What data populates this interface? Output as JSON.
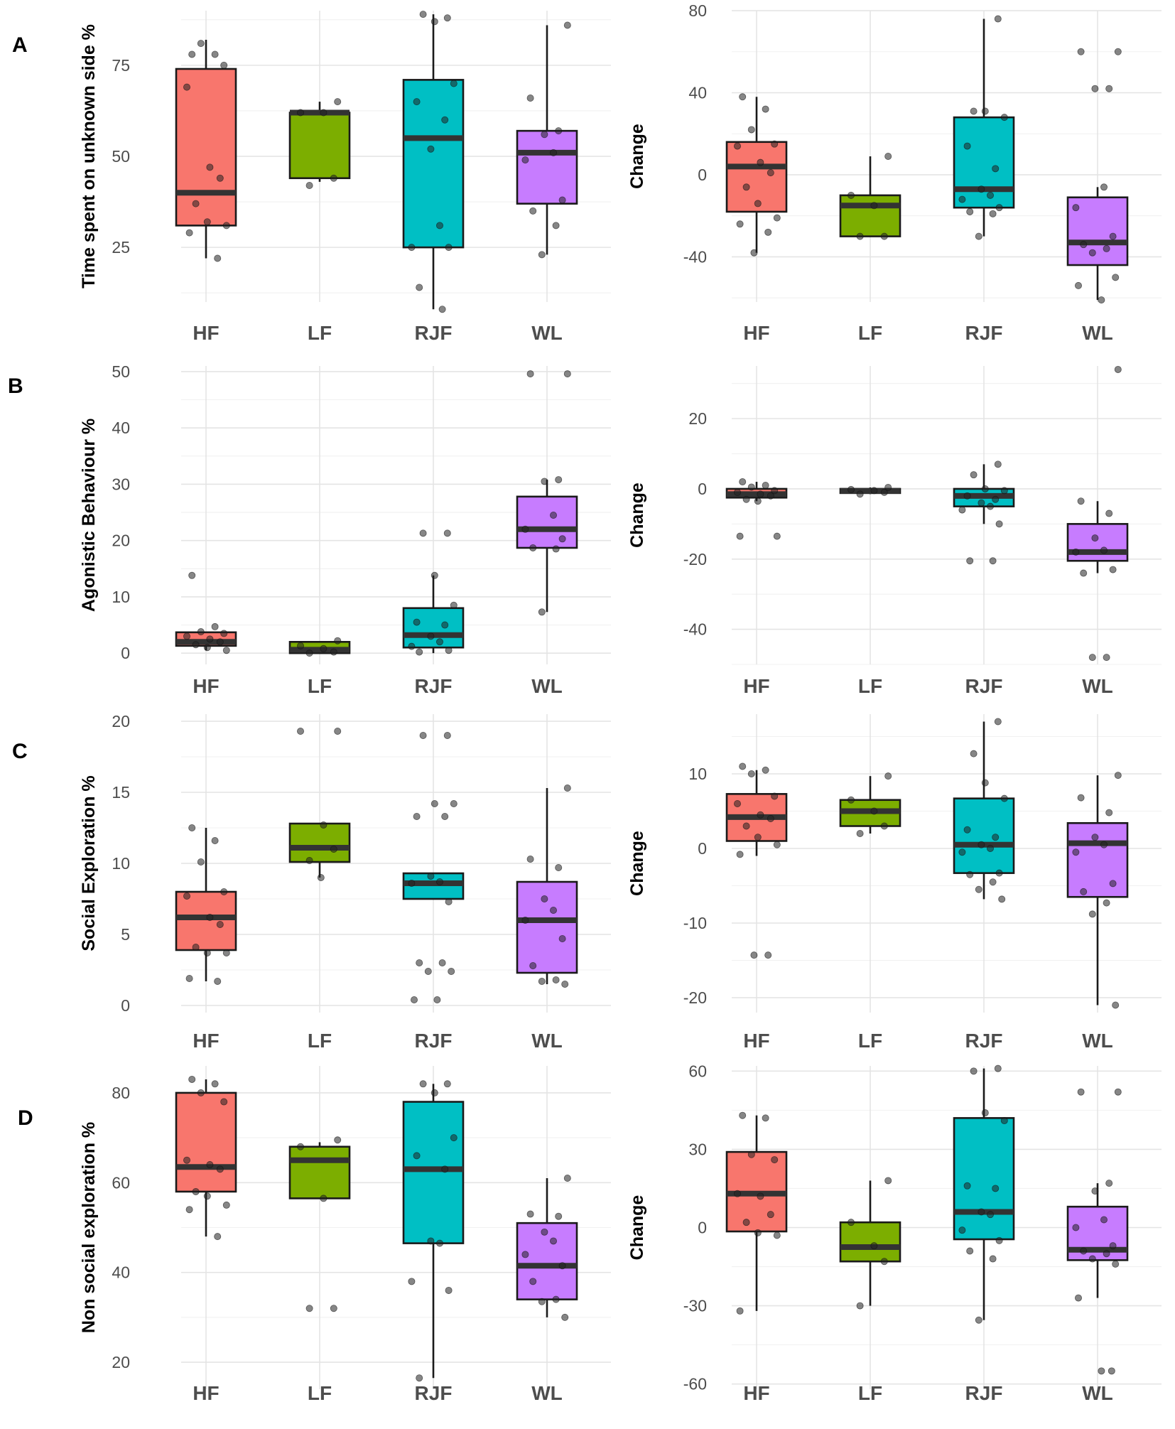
{
  "colors": {
    "HF": "#F8766D",
    "LF": "#7CAE00",
    "RJF": "#00BFC4",
    "WL": "#C77CFF"
  },
  "chart_data": [
    {
      "type": "box",
      "panel": "A",
      "side": "left",
      "title": "",
      "xlabel": "",
      "ylabel": "Time spent on unknown side %",
      "ylim": [
        10,
        90
      ],
      "yticks": [
        25,
        50,
        75
      ],
      "categories": [
        "HF",
        "LF",
        "RJF",
        "WL"
      ],
      "boxes": [
        {
          "category": "HF",
          "min": 22,
          "q1": 31,
          "median": 40,
          "q3": 74,
          "max": 82,
          "points": [
            78,
            78,
            81,
            75,
            69,
            47,
            44,
            37,
            32,
            31,
            29,
            22
          ]
        },
        {
          "category": "LF",
          "min": 43,
          "q1": 44,
          "median": 62,
          "q3": 62,
          "max": 65,
          "points": [
            65,
            62,
            62,
            44,
            42
          ]
        },
        {
          "category": "RJF",
          "min": 8,
          "q1": 25,
          "median": 55,
          "q3": 71,
          "max": 89,
          "points": [
            88,
            89,
            87,
            70,
            65,
            60,
            52,
            31,
            25,
            25,
            14,
            8
          ]
        },
        {
          "category": "WL",
          "min": 23,
          "q1": 37,
          "median": 51,
          "q3": 57,
          "max": 86,
          "points": [
            86,
            66,
            57,
            56,
            51,
            49,
            38,
            35,
            31,
            23
          ]
        }
      ]
    },
    {
      "type": "box",
      "panel": "A",
      "side": "right",
      "title": "",
      "xlabel": "",
      "ylabel": "Change",
      "ylim": [
        -62,
        80
      ],
      "yticks": [
        -40,
        0,
        40,
        80
      ],
      "categories": [
        "HF",
        "LF",
        "RJF",
        "WL"
      ],
      "boxes": [
        {
          "category": "HF",
          "min": -38,
          "q1": -18,
          "median": 4,
          "q3": 16,
          "max": 38,
          "points": [
            38,
            32,
            22,
            15,
            14,
            6,
            1,
            -6,
            -14,
            -21,
            -24,
            -28,
            -38
          ]
        },
        {
          "category": "LF",
          "min": -30,
          "q1": -30,
          "median": -15,
          "q3": -10,
          "max": 9,
          "points": [
            9,
            -10,
            -15,
            -30,
            -30
          ]
        },
        {
          "category": "RJF",
          "min": -30,
          "q1": -16,
          "median": -7,
          "q3": 28,
          "max": 76,
          "points": [
            76,
            31,
            31,
            28,
            14,
            3,
            -7,
            -10,
            -12,
            -16,
            -18,
            -19,
            -30
          ]
        },
        {
          "category": "WL",
          "min": -61,
          "q1": -44,
          "median": -33,
          "q3": -11,
          "max": -6,
          "points": [
            60,
            60,
            42,
            42,
            -6,
            -16,
            -30,
            -34,
            -36,
            -38,
            -50,
            -54,
            -61
          ]
        }
      ]
    },
    {
      "type": "box",
      "panel": "B",
      "side": "left",
      "title": "",
      "xlabel": "",
      "ylabel": "Agonistic Behaviour %",
      "ylim": [
        -2,
        51
      ],
      "yticks": [
        0,
        10,
        20,
        30,
        40,
        50
      ],
      "categories": [
        "HF",
        "LF",
        "RJF",
        "WL"
      ],
      "boxes": [
        {
          "category": "HF",
          "min": 0.5,
          "q1": 1.3,
          "median": 2,
          "q3": 3.7,
          "max": 3.7,
          "points": [
            13.8,
            4.7,
            3.8,
            3.5,
            3,
            2.5,
            2,
            1.5,
            1,
            0.5
          ]
        },
        {
          "category": "LF",
          "min": 0,
          "q1": 0,
          "median": 0.6,
          "q3": 2,
          "max": 2,
          "points": [
            2.2,
            1.3,
            0.8,
            0.2,
            0
          ]
        },
        {
          "category": "RJF",
          "min": 0,
          "q1": 1,
          "median": 3.2,
          "q3": 8,
          "max": 13.8,
          "points": [
            21.3,
            21.3,
            13.8,
            8.5,
            5.5,
            5,
            3,
            2,
            1.2,
            0.5,
            0.2
          ]
        },
        {
          "category": "WL",
          "min": 7.3,
          "q1": 18.7,
          "median": 22,
          "q3": 27.8,
          "max": 30.8,
          "points": [
            49.6,
            49.6,
            30.8,
            30.5,
            24.5,
            22,
            20.3,
            18.7,
            18.5,
            7.3
          ]
        }
      ]
    },
    {
      "type": "box",
      "panel": "B",
      "side": "right",
      "title": "",
      "xlabel": "",
      "ylabel": "Change",
      "ylim": [
        -50,
        35
      ],
      "yticks": [
        -40,
        -20,
        0,
        20
      ],
      "categories": [
        "HF",
        "LF",
        "RJF",
        "WL"
      ],
      "boxes": [
        {
          "category": "HF",
          "min": -3.5,
          "q1": -2.5,
          "median": -1.5,
          "q3": 0,
          "max": 2,
          "points": [
            2,
            1,
            0.5,
            -0.5,
            -1,
            -1.5,
            -2,
            -3,
            -3.5,
            -13.5,
            -13.5
          ]
        },
        {
          "category": "LF",
          "min": -1.5,
          "q1": -1.2,
          "median": -0.6,
          "q3": 0,
          "max": 0.4,
          "points": [
            0.4,
            -0.2,
            -0.5,
            -1,
            -1.5
          ]
        },
        {
          "category": "RJF",
          "min": -10,
          "q1": -5,
          "median": -2,
          "q3": 0,
          "max": 7,
          "points": [
            7,
            4,
            0,
            -0.5,
            -2,
            -3,
            -4,
            -5,
            -6,
            -10,
            -20.5,
            -20.5
          ]
        },
        {
          "category": "WL",
          "min": -24,
          "q1": -20.5,
          "median": -18,
          "q3": -10,
          "max": -3.5,
          "points": [
            34,
            -3.5,
            -7,
            -14,
            -17.5,
            -18,
            -23,
            -24,
            -48,
            -48
          ]
        }
      ]
    },
    {
      "type": "box",
      "panel": "C",
      "side": "left",
      "title": "",
      "xlabel": "",
      "ylabel": "Social Exploration %",
      "ylim": [
        -0.5,
        20.5
      ],
      "yticks": [
        0,
        5,
        10,
        15,
        20
      ],
      "categories": [
        "HF",
        "LF",
        "RJF",
        "WL"
      ],
      "boxes": [
        {
          "category": "HF",
          "min": 1.7,
          "q1": 3.9,
          "median": 6.2,
          "q3": 8,
          "max": 12.5,
          "points": [
            12.5,
            11.6,
            10.1,
            8,
            7.7,
            6.2,
            5.7,
            4.1,
            3.7,
            3.7,
            1.9,
            1.7
          ]
        },
        {
          "category": "LF",
          "min": 9,
          "q1": 10.1,
          "median": 11.1,
          "q3": 12.8,
          "max": 12.8,
          "points": [
            19.3,
            19.3,
            12.7,
            11,
            10.2,
            9
          ]
        },
        {
          "category": "RJF",
          "min": 7.5,
          "q1": 7.5,
          "median": 8.6,
          "q3": 9.3,
          "max": 9.3,
          "points": [
            19,
            19,
            14.2,
            14.2,
            13.3,
            13.3,
            9.1,
            8.7,
            8.6,
            7.3,
            3,
            3,
            2.4,
            2.4,
            0.4,
            0.4
          ]
        },
        {
          "category": "WL",
          "min": 1.5,
          "q1": 2.3,
          "median": 6,
          "q3": 8.7,
          "max": 15.3,
          "points": [
            15.3,
            10.3,
            9.7,
            7.5,
            6.7,
            6,
            4.7,
            2.8,
            1.8,
            1.7,
            1.5
          ]
        }
      ]
    },
    {
      "type": "box",
      "panel": "C",
      "side": "right",
      "title": "",
      "xlabel": "",
      "ylabel": "Change",
      "ylim": [
        -22,
        18
      ],
      "yticks": [
        -20,
        -10,
        0,
        10
      ],
      "categories": [
        "HF",
        "LF",
        "RJF",
        "WL"
      ],
      "boxes": [
        {
          "category": "HF",
          "min": -1,
          "q1": 1,
          "median": 4.2,
          "q3": 7.3,
          "max": 10.5,
          "points": [
            11,
            10.5,
            10,
            7,
            6,
            4.5,
            4,
            3,
            1.5,
            0.5,
            -0.8,
            -14.3,
            -14.3
          ]
        },
        {
          "category": "LF",
          "min": 2,
          "q1": 3,
          "median": 5,
          "q3": 6.5,
          "max": 9.7,
          "points": [
            9.7,
            6.5,
            5,
            3,
            2
          ]
        },
        {
          "category": "RJF",
          "min": -6.8,
          "q1": -3.3,
          "median": 0.5,
          "q3": 6.7,
          "max": 17,
          "points": [
            17,
            12.7,
            8.8,
            6.7,
            2.5,
            1.5,
            0.5,
            0,
            -0.5,
            -3.3,
            -3.5,
            -4.5,
            -5.5,
            -6.8
          ]
        },
        {
          "category": "WL",
          "min": -21,
          "q1": -6.5,
          "median": 0.7,
          "q3": 3.4,
          "max": 9.8,
          "points": [
            9.8,
            6.8,
            4.8,
            1.5,
            0.5,
            -0.5,
            -4.7,
            -5.8,
            -7.3,
            -8.8,
            -21
          ]
        }
      ]
    },
    {
      "type": "box",
      "panel": "D",
      "side": "left",
      "title": "",
      "xlabel": "",
      "ylabel": "Non social exploration %",
      "ylim": [
        14,
        86
      ],
      "yticks": [
        20,
        40,
        60,
        80
      ],
      "categories": [
        "HF",
        "LF",
        "RJF",
        "WL"
      ],
      "boxes": [
        {
          "category": "HF",
          "min": 48,
          "q1": 58,
          "median": 63.5,
          "q3": 80,
          "max": 83,
          "points": [
            83,
            82,
            80,
            78,
            65,
            64,
            63,
            58,
            57,
            55,
            54,
            48
          ]
        },
        {
          "category": "LF",
          "min": 56.5,
          "q1": 56.5,
          "median": 65,
          "q3": 68,
          "max": 69,
          "points": [
            69.5,
            68,
            56.5,
            32,
            32
          ]
        },
        {
          "category": "RJF",
          "min": 16.5,
          "q1": 46.5,
          "median": 63,
          "q3": 78,
          "max": 82,
          "points": [
            82,
            82,
            80,
            70,
            66,
            63,
            47,
            46.5,
            38,
            36,
            16.5
          ]
        },
        {
          "category": "WL",
          "min": 30,
          "q1": 34,
          "median": 41.5,
          "q3": 51,
          "max": 61,
          "points": [
            61,
            53,
            52.5,
            49,
            47,
            44,
            41.5,
            38,
            34,
            33.5,
            30
          ]
        }
      ]
    },
    {
      "type": "box",
      "panel": "D",
      "side": "right",
      "title": "",
      "xlabel": "",
      "ylabel": "Change",
      "ylim": [
        -62,
        62
      ],
      "yticks": [
        -60,
        -30,
        0,
        30,
        60
      ],
      "categories": [
        "HF",
        "LF",
        "RJF",
        "WL"
      ],
      "boxes": [
        {
          "category": "HF",
          "min": -32,
          "q1": -1.5,
          "median": 13,
          "q3": 29,
          "max": 43,
          "points": [
            43,
            42,
            28,
            26,
            13,
            12,
            5,
            2,
            -2,
            -3,
            -32
          ]
        },
        {
          "category": "LF",
          "min": -30,
          "q1": -13,
          "median": -7.5,
          "q3": 2,
          "max": 18,
          "points": [
            18,
            2,
            -7,
            -13,
            -30
          ]
        },
        {
          "category": "RJF",
          "min": -35.5,
          "q1": -4.5,
          "median": 6,
          "q3": 42,
          "max": 61,
          "points": [
            61,
            60,
            44,
            41,
            16,
            15,
            6,
            5,
            -1,
            -5,
            -9,
            -12,
            -35.5
          ]
        },
        {
          "category": "WL",
          "min": -27,
          "q1": -12.5,
          "median": -8.5,
          "q3": 8,
          "max": 17,
          "points": [
            52,
            52,
            17,
            14,
            3,
            0,
            -7,
            -9,
            -10,
            -12,
            -14,
            -27,
            -55,
            -55
          ]
        }
      ]
    }
  ]
}
